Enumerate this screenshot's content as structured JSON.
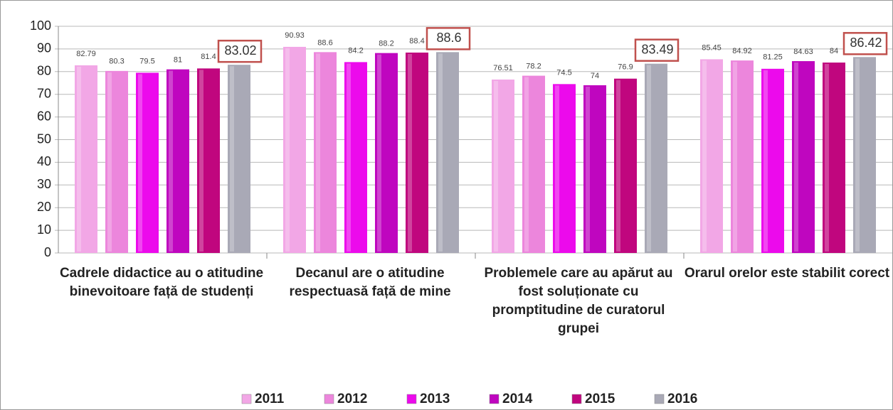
{
  "chart_data": {
    "type": "bar",
    "categories": [
      "Cadrele didactice au o atitudine binevoitoare față de studenți",
      "Decanul are o atitudine respectuasă față de mine",
      "Problemele care au apărut au fost soluționate cu promptitudine de curatorul grupei",
      "Orarul orelor este stabilit corect"
    ],
    "series": [
      {
        "name": "2011",
        "color": "#f2a7e6",
        "values": [
          82.79,
          90.93,
          76.51,
          85.45
        ]
      },
      {
        "name": "2012",
        "color": "#ec86dc",
        "values": [
          80.3,
          88.6,
          78.2,
          84.92
        ]
      },
      {
        "name": "2013",
        "color": "#ec0aec",
        "values": [
          79.5,
          84.2,
          74.5,
          81.25
        ]
      },
      {
        "name": "2014",
        "color": "#bf06bf",
        "values": [
          81,
          88.2,
          74,
          84.63
        ]
      },
      {
        "name": "2015",
        "color": "#c0067e",
        "values": [
          81.4,
          88.4,
          76.9,
          84
        ]
      },
      {
        "name": "2016",
        "color": "#a9a9b6",
        "values": [
          83.02,
          88.6,
          83.49,
          86.42
        ]
      }
    ],
    "ylim": [
      0,
      100
    ],
    "yticks": [
      0,
      10,
      20,
      30,
      40,
      50,
      60,
      70,
      80,
      90,
      100
    ],
    "grid": true,
    "legend": "bottom"
  }
}
